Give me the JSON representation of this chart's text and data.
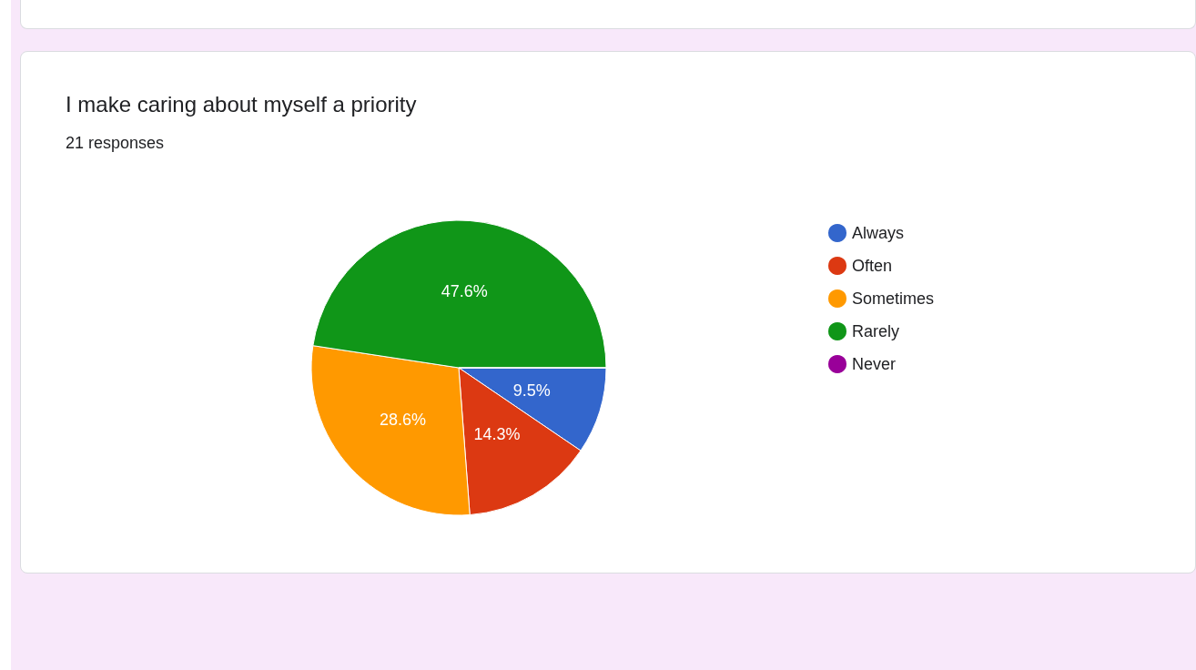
{
  "chart_data": {
    "type": "pie",
    "title": "I make caring about myself a priority",
    "subtitle": "21 responses",
    "categories": [
      "Always",
      "Often",
      "Sometimes",
      "Rarely",
      "Never"
    ],
    "values": [
      9.5,
      14.3,
      28.6,
      47.6,
      0
    ],
    "colors": [
      "#3366cc",
      "#dc3912",
      "#ff9900",
      "#109618",
      "#990099"
    ],
    "value_labels": [
      "9.5%",
      "14.3%",
      "28.6%",
      "47.6%",
      null
    ],
    "legend": "right"
  }
}
